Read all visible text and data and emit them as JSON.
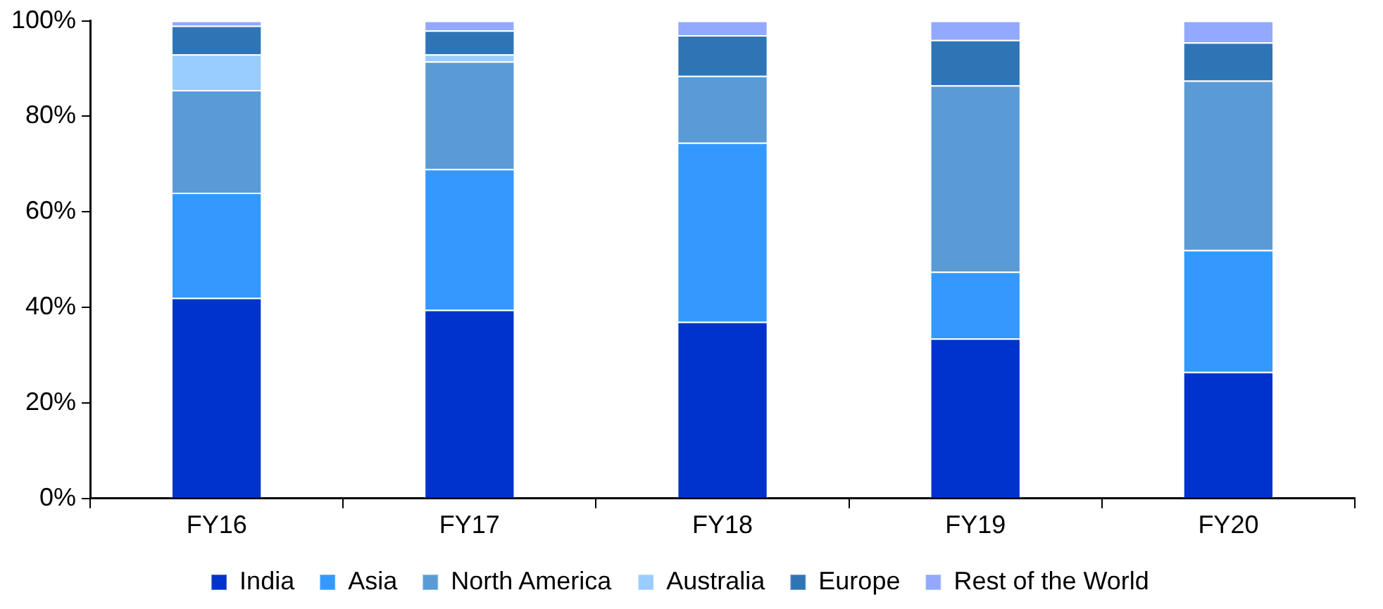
{
  "chart_data": {
    "type": "bar",
    "stacked": true,
    "categories": [
      "FY16",
      "FY17",
      "FY18",
      "FY19",
      "FY20"
    ],
    "series": [
      {
        "name": "India",
        "color": "#0033cc",
        "values": [
          42,
          39.5,
          37,
          33.5,
          26.5
        ]
      },
      {
        "name": "Asia",
        "color": "#3399ff",
        "values": [
          22,
          29.5,
          37.5,
          14,
          25.5
        ]
      },
      {
        "name": "North America",
        "color": "#5b9bd5",
        "values": [
          21.5,
          22.5,
          14,
          39,
          35.5
        ]
      },
      {
        "name": "Australia",
        "color": "#99ccff",
        "values": [
          7.5,
          1.5,
          0,
          0,
          0
        ]
      },
      {
        "name": "Europe",
        "color": "#2e75b6",
        "values": [
          6,
          5,
          8.5,
          9.5,
          8
        ]
      },
      {
        "name": "Rest of the World",
        "color": "#92a9ff",
        "values": [
          1,
          2,
          3,
          4,
          4.5
        ]
      }
    ],
    "ylim": [
      0,
      100
    ],
    "yticks": [
      {
        "value": 0,
        "label": "0%"
      },
      {
        "value": 20,
        "label": "20%"
      },
      {
        "value": 40,
        "label": "40%"
      },
      {
        "value": 60,
        "label": "60%"
      },
      {
        "value": 80,
        "label": "80%"
      },
      {
        "value": 100,
        "label": "100%"
      }
    ],
    "grid": false,
    "legend": "bottom"
  }
}
